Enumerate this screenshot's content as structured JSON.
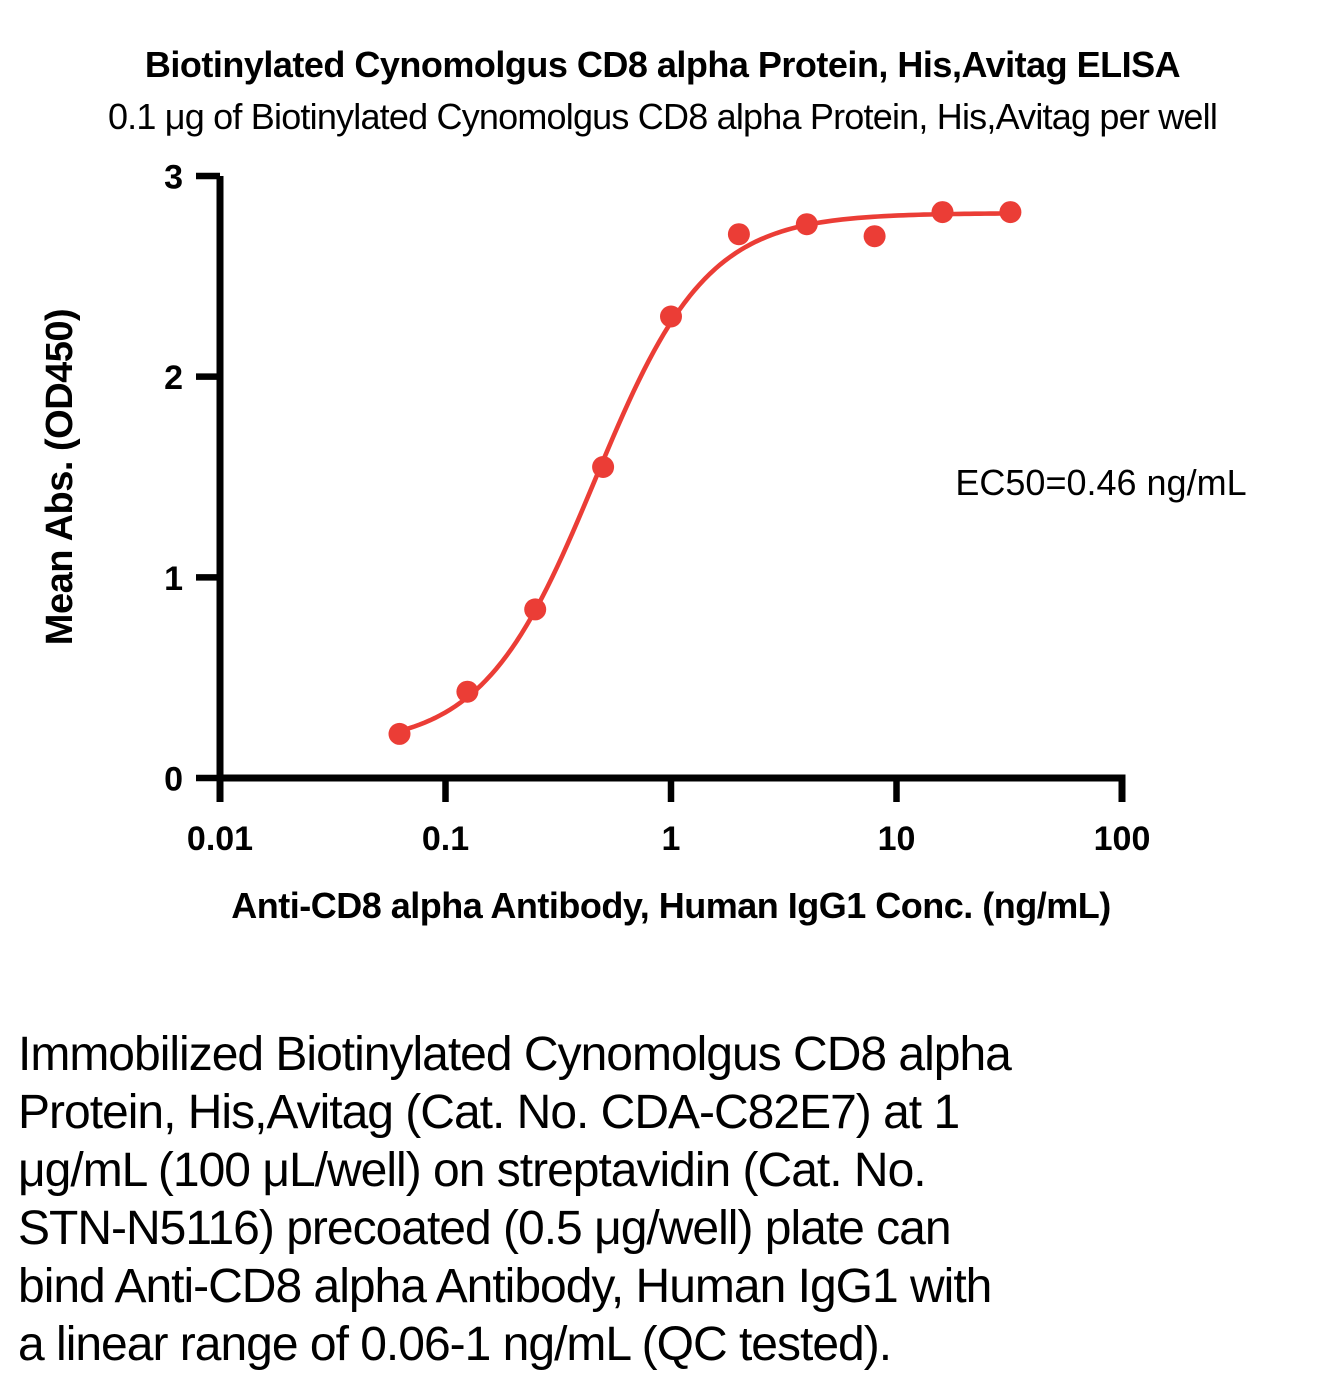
{
  "page": {
    "title": "Biotinylated Cynomolgus CD8 alpha Protein, His,Avitag ELISA",
    "subtitle": "0.1 μg of Biotinylated Cynomolgus CD8 alpha Protein, His,Avitag per well"
  },
  "chart_data": {
    "type": "scatter",
    "title": "Biotinylated Cynomolgus CD8 alpha Protein, His,Avitag ELISA",
    "subtitle": "0.1 μg of Biotinylated Cynomolgus CD8 alpha Protein, His,Avitag per well",
    "xlabel": "Anti-CD8 alpha Antibody, Human IgG1 Conc. (ng/mL)",
    "ylabel": "Mean Abs. (OD450)",
    "x_scale": "log10",
    "xlim": [
      0.01,
      100
    ],
    "ylim": [
      0,
      3
    ],
    "x_ticks": [
      0.01,
      0.1,
      1,
      10,
      100
    ],
    "x_tick_labels": [
      "0.01",
      "0.1",
      "1",
      "10",
      "100"
    ],
    "y_ticks": [
      0,
      1,
      2,
      3
    ],
    "y_tick_labels": [
      "0",
      "1",
      "2",
      "3"
    ],
    "grid": false,
    "legend": "none",
    "series": [
      {
        "name": "Anti-CD8 alpha Antibody, Human IgG1",
        "x": [
          0.0625,
          0.125,
          0.25,
          0.5,
          1,
          2,
          4,
          8,
          16,
          32
        ],
        "y": [
          0.22,
          0.43,
          0.84,
          1.55,
          2.3,
          2.71,
          2.76,
          2.7,
          2.82,
          2.82
        ],
        "marker": "circle"
      }
    ],
    "fit_curve": {
      "model": "4PL",
      "bottom": 0.155,
      "top": 2.815,
      "ec50": 0.46,
      "hill": 1.75,
      "x_start": 0.0625,
      "x_end": 32
    },
    "annotation": "EC50=0.46 ng/mL",
    "colors": {
      "points": "#EB3D36",
      "curve": "#EB3D36",
      "axis": "#000000",
      "text": "#000000"
    }
  },
  "description_lines": [
    "Immobilized Biotinylated Cynomolgus CD8 alpha",
    "Protein, His,Avitag (Cat. No. CDA-C82E7) at 1",
    "μg/mL (100 μL/well) on streptavidin (Cat. No.",
    "STN-N5116) precoated (0.5 μg/well) plate can",
    "bind Anti-CD8 alpha Antibody, Human IgG1 with",
    "a linear range of 0.06-1 ng/mL (QC tested)."
  ]
}
